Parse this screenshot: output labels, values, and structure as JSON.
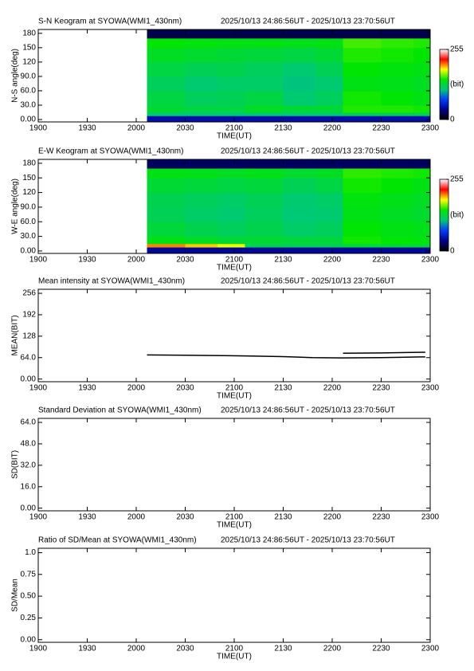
{
  "chart_data": [
    {
      "type": "heatmap",
      "title": "S-N Keogram at SYOWA(WMI1_430nm)",
      "subtitle": "2025/10/13 24:86:56UT - 2025/10/13 23:70:56UT",
      "x_label": "TIME(UT)",
      "y_label": "N-S angle(deg)",
      "xlim": [
        19,
        23
      ],
      "xticks": [
        {
          "value": 19,
          "label": "1900"
        },
        {
          "value": 19.5,
          "label": "1930"
        },
        {
          "value": 20,
          "label": "2000"
        },
        {
          "value": 20.5,
          "label": "2030"
        },
        {
          "value": 21,
          "label": "2100"
        },
        {
          "value": 21.5,
          "label": "2130"
        },
        {
          "value": 22,
          "label": "2200"
        },
        {
          "value": 22.5,
          "label": "2230"
        },
        {
          "value": 23,
          "label": "2300"
        }
      ],
      "ylim": [
        -5,
        188
      ],
      "yticks": [
        {
          "value": 0,
          "label": "0.00"
        },
        {
          "value": 30,
          "label": "30.0"
        },
        {
          "value": 60,
          "label": "60.0"
        },
        {
          "value": 90,
          "label": "90.0"
        },
        120,
        150,
        180
      ],
      "x_edges": [
        20.11,
        20.5,
        20.83,
        21.11,
        21.5,
        21.83,
        22.11,
        22.5,
        22.83,
        23.0
      ],
      "y_edges": [
        -5,
        8,
        15,
        30,
        60,
        90,
        120,
        150,
        170,
        188
      ],
      "values": [
        [
          45,
          45,
          45,
          45,
          45,
          45,
          45,
          45,
          45
        ],
        [
          110,
          110,
          110,
          110,
          110,
          110,
          120,
          120,
          120
        ],
        [
          130,
          125,
          125,
          135,
          130,
          130,
          150,
          150,
          148
        ],
        [
          125,
          118,
          120,
          125,
          112,
          118,
          148,
          145,
          140
        ],
        [
          118,
          112,
          115,
          115,
          108,
          112,
          140,
          138,
          135
        ],
        [
          125,
          120,
          122,
          118,
          112,
          120,
          145,
          142,
          140
        ],
        [
          135,
          132,
          130,
          128,
          125,
          130,
          150,
          148,
          145
        ],
        [
          145,
          142,
          140,
          140,
          138,
          140,
          155,
          152,
          150
        ],
        [
          20,
          20,
          20,
          20,
          20,
          20,
          20,
          20,
          20
        ]
      ],
      "clim": [
        0,
        255
      ],
      "colorbar_ticks": [
        0,
        255
      ],
      "colorbar_label": "(bit)",
      "colormap": [
        "#000000",
        "#00008c",
        "#003cff",
        "#00c878",
        "#00e600",
        "#ffff00",
        "#ff0000",
        "#ffffff"
      ]
    },
    {
      "type": "heatmap",
      "title": "E-W Keogram at SYOWA(WMI1_430nm)",
      "subtitle": "2025/10/13 24:86:56UT - 2025/10/13 23:70:56UT",
      "x_label": "TIME(UT)",
      "y_label": "W-E angle(deg)",
      "xlim": [
        19,
        23
      ],
      "xticks": [
        {
          "value": 19,
          "label": "1900"
        },
        {
          "value": 19.5,
          "label": "1930"
        },
        {
          "value": 20,
          "label": "2000"
        },
        {
          "value": 20.5,
          "label": "2030"
        },
        {
          "value": 21,
          "label": "2100"
        },
        {
          "value": 21.5,
          "label": "2130"
        },
        {
          "value": 22,
          "label": "2200"
        },
        {
          "value": 22.5,
          "label": "2230"
        },
        {
          "value": 23,
          "label": "2300"
        }
      ],
      "ylim": [
        -5,
        188
      ],
      "yticks": [
        {
          "value": 0,
          "label": "0.00"
        },
        {
          "value": 30,
          "label": "30.0"
        },
        {
          "value": 60,
          "label": "60.0"
        },
        {
          "value": 90,
          "label": "90.0"
        },
        120,
        150,
        180
      ],
      "x_edges": [
        20.11,
        20.5,
        20.83,
        21.11,
        21.5,
        21.83,
        22.11,
        22.5,
        22.83,
        23.0
      ],
      "y_edges": [
        -5,
        8,
        15,
        30,
        60,
        90,
        120,
        150,
        170,
        188
      ],
      "values": [
        [
          40,
          40,
          40,
          40,
          40,
          40,
          40,
          40,
          40
        ],
        [
          200,
          190,
          180,
          120,
          120,
          120,
          130,
          130,
          130
        ],
        [
          140,
          135,
          130,
          130,
          128,
          128,
          148,
          145,
          142
        ],
        [
          128,
          122,
          118,
          122,
          115,
          118,
          145,
          140,
          138
        ],
        [
          120,
          115,
          112,
          118,
          110,
          112,
          140,
          135,
          132
        ],
        [
          122,
          118,
          115,
          120,
          112,
          115,
          142,
          138,
          135
        ],
        [
          130,
          128,
          125,
          128,
          120,
          125,
          148,
          145,
          140
        ],
        [
          140,
          138,
          135,
          138,
          132,
          135,
          152,
          150,
          148
        ],
        [
          25,
          25,
          25,
          25,
          25,
          25,
          25,
          25,
          25
        ]
      ],
      "clim": [
        0,
        255
      ],
      "colorbar_ticks": [
        0,
        255
      ],
      "colorbar_label": "(bit)",
      "colormap": [
        "#000000",
        "#00008c",
        "#003cff",
        "#00c878",
        "#00e600",
        "#ffff00",
        "#ff0000",
        "#ffffff"
      ]
    },
    {
      "type": "line",
      "title": "Mean intensity at SYOWA(WMI1_430nm)",
      "subtitle": "2025/10/13 24:86:56UT - 2025/10/13 23:70:56UT",
      "x_label": "TIME(UT)",
      "y_label": "MEAN(BIT)",
      "xlim": [
        19,
        23
      ],
      "xticks": [
        {
          "value": 19,
          "label": "1900"
        },
        {
          "value": 19.5,
          "label": "1930"
        },
        {
          "value": 20,
          "label": "2000"
        },
        {
          "value": 20.5,
          "label": "2030"
        },
        {
          "value": 21,
          "label": "2100"
        },
        {
          "value": 21.5,
          "label": "2130"
        },
        {
          "value": 22,
          "label": "2200"
        },
        {
          "value": 22.5,
          "label": "2230"
        },
        {
          "value": 23,
          "label": "2300"
        }
      ],
      "ylim": [
        -8,
        268
      ],
      "yticks": [
        {
          "value": 0,
          "label": "0.00"
        },
        {
          "value": 64,
          "label": "64.0"
        },
        128,
        192,
        256
      ],
      "series": [
        {
          "color": "#000000",
          "x": [
            20.11,
            20.5,
            20.9,
            21.11,
            21.5,
            21.8,
            22.1,
            22.5,
            22.9,
            22.95
          ],
          "values": [
            72,
            71,
            70,
            69,
            67,
            64,
            63,
            64,
            66,
            66
          ]
        },
        {
          "color": "#000000",
          "x": [
            22.11,
            22.5,
            22.95
          ],
          "values": [
            77,
            78,
            80
          ]
        }
      ]
    },
    {
      "type": "line",
      "title": "Standard Deviation at SYOWA(WMI1_430nm)",
      "subtitle": "2025/10/13 24:86:56UT - 2025/10/13 23:70:56UT",
      "x_label": "TIME(UT)",
      "y_label": "SD(BIT)",
      "xlim": [
        19,
        23
      ],
      "xticks": [
        {
          "value": 19,
          "label": "1900"
        },
        {
          "value": 19.5,
          "label": "1930"
        },
        {
          "value": 20,
          "label": "2000"
        },
        {
          "value": 20.5,
          "label": "2030"
        },
        {
          "value": 21,
          "label": "2100"
        },
        {
          "value": 21.5,
          "label": "2130"
        },
        {
          "value": 22,
          "label": "2200"
        },
        {
          "value": 22.5,
          "label": "2230"
        },
        {
          "value": 23,
          "label": "2300"
        }
      ],
      "ylim": [
        -2,
        67
      ],
      "yticks": [
        {
          "value": 0,
          "label": "0.00"
        },
        {
          "value": 16,
          "label": "16.0"
        },
        {
          "value": 32,
          "label": "32.0"
        },
        {
          "value": 48,
          "label": "48.0"
        },
        {
          "value": 64,
          "label": "64.0"
        }
      ],
      "series": []
    },
    {
      "type": "line",
      "title": "Ratio of SD/Mean at SYOWA(WMI1_430nm)",
      "subtitle": "2025/10/13 24:86:56UT - 2025/10/13 23:70:56UT",
      "x_label": "TIME(UT)",
      "y_label": "SD/Mean",
      "xlim": [
        19,
        23
      ],
      "xticks": [
        {
          "value": 19,
          "label": "1900"
        },
        {
          "value": 19.5,
          "label": "1930"
        },
        {
          "value": 20,
          "label": "2000"
        },
        {
          "value": 20.5,
          "label": "2030"
        },
        {
          "value": 21,
          "label": "2100"
        },
        {
          "value": 21.5,
          "label": "2130"
        },
        {
          "value": 22,
          "label": "2200"
        },
        {
          "value": 22.5,
          "label": "2230"
        },
        {
          "value": 23,
          "label": "2300"
        }
      ],
      "ylim": [
        -0.03,
        1.05
      ],
      "yticks": [
        {
          "value": 0,
          "label": "0.00"
        },
        {
          "value": 0.25,
          "label": "0.25"
        },
        {
          "value": 0.5,
          "label": "0.50"
        },
        {
          "value": 0.75,
          "label": "0.75"
        },
        {
          "value": 1,
          "label": "1.0"
        }
      ],
      "series": []
    }
  ]
}
